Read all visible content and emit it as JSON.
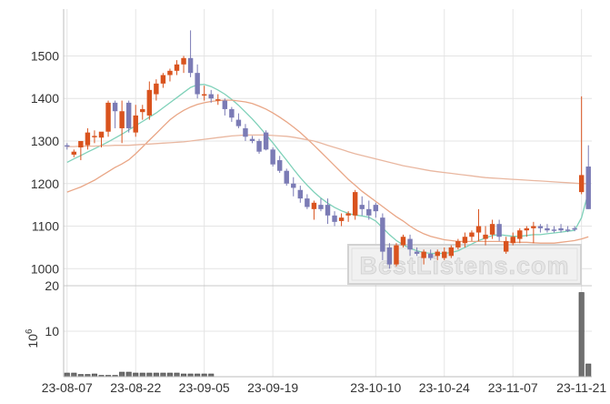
{
  "watermark": "BestListens.com",
  "chart_data": {
    "type": "candlestick",
    "grid": true,
    "price_axis": {
      "ylim": [
        960,
        1610
      ],
      "ticks": [
        "1000",
        "1100",
        "1200",
        "1300",
        "1400",
        "1500"
      ]
    },
    "volume_axis": {
      "ylim": [
        0,
        20
      ],
      "ticks": [
        "10",
        "20"
      ],
      "multiplier_label": "10",
      "multiplier_exponent": "6"
    },
    "x_tick_labels": [
      "23-08-07",
      "23-08-22",
      "23-09-05",
      "23-09-19",
      "23-10-10",
      "23-10-24",
      "23-11-07",
      "23-11-21"
    ],
    "x_tick_index": [
      0,
      10,
      20,
      30,
      45,
      55,
      65,
      75
    ],
    "bar_count": 77,
    "candles": [
      [
        1290,
        1295,
        1280,
        1288
      ],
      [
        1268,
        1280,
        1262,
        1275
      ],
      [
        1285,
        1300,
        1255,
        1300
      ],
      [
        1290,
        1330,
        1280,
        1320
      ],
      [
        1312,
        1325,
        1295,
        1312
      ],
      [
        1308,
        1320,
        1285,
        1322
      ],
      [
        1322,
        1395,
        1310,
        1390
      ],
      [
        1390,
        1395,
        1330,
        1370
      ],
      [
        1330,
        1395,
        1295,
        1370
      ],
      [
        1390,
        1395,
        1320,
        1330
      ],
      [
        1320,
        1385,
        1310,
        1360
      ],
      [
        1368,
        1385,
        1350,
        1375
      ],
      [
        1360,
        1440,
        1350,
        1420
      ],
      [
        1410,
        1445,
        1395,
        1435
      ],
      [
        1435,
        1460,
        1425,
        1455
      ],
      [
        1455,
        1470,
        1440,
        1465
      ],
      [
        1465,
        1490,
        1455,
        1480
      ],
      [
        1480,
        1500,
        1460,
        1495
      ],
      [
        1495,
        1560,
        1450,
        1460
      ],
      [
        1460,
        1480,
        1400,
        1410
      ],
      [
        1410,
        1430,
        1395,
        1410
      ],
      [
        1410,
        1420,
        1390,
        1400
      ],
      [
        1395,
        1410,
        1385,
        1398
      ],
      [
        1395,
        1400,
        1360,
        1375
      ],
      [
        1375,
        1380,
        1345,
        1355
      ],
      [
        1350,
        1365,
        1330,
        1335
      ],
      [
        1330,
        1340,
        1300,
        1310
      ],
      [
        1305,
        1312,
        1295,
        1300
      ],
      [
        1300,
        1305,
        1270,
        1275
      ],
      [
        1320,
        1325,
        1278,
        1280
      ],
      [
        1280,
        1285,
        1240,
        1245
      ],
      [
        1255,
        1265,
        1225,
        1230
      ],
      [
        1230,
        1235,
        1195,
        1200
      ],
      [
        1200,
        1215,
        1170,
        1190
      ],
      [
        1185,
        1195,
        1155,
        1165
      ],
      [
        1165,
        1175,
        1140,
        1145
      ],
      [
        1140,
        1160,
        1115,
        1155
      ],
      [
        1150,
        1165,
        1135,
        1140
      ],
      [
        1150,
        1165,
        1105,
        1125
      ],
      [
        1125,
        1135,
        1100,
        1110
      ],
      [
        1112,
        1130,
        1100,
        1120
      ],
      [
        1125,
        1135,
        1110,
        1130
      ],
      [
        1125,
        1185,
        1115,
        1180
      ],
      [
        1150,
        1170,
        1125,
        1140
      ],
      [
        1140,
        1160,
        1115,
        1125
      ],
      [
        1150,
        1155,
        1120,
        1135
      ],
      [
        1120,
        1130,
        1020,
        1040
      ],
      [
        1050,
        1060,
        1000,
        1010
      ],
      [
        1010,
        1060,
        1005,
        1055
      ],
      [
        1055,
        1080,
        1050,
        1075
      ],
      [
        1070,
        1080,
        1030,
        1045
      ],
      [
        1040,
        1050,
        1030,
        1035
      ],
      [
        1025,
        1045,
        1010,
        1040
      ],
      [
        1035,
        1045,
        1020,
        1025
      ],
      [
        1030,
        1045,
        1020,
        1040
      ],
      [
        1025,
        1050,
        1020,
        1040
      ],
      [
        1030,
        1055,
        1025,
        1050
      ],
      [
        1050,
        1070,
        1045,
        1065
      ],
      [
        1060,
        1085,
        1050,
        1075
      ],
      [
        1075,
        1090,
        1065,
        1085
      ],
      [
        1085,
        1140,
        1065,
        1100
      ],
      [
        1070,
        1100,
        1055,
        1080
      ],
      [
        1080,
        1115,
        1070,
        1105
      ],
      [
        1105,
        1115,
        1065,
        1075
      ],
      [
        1040,
        1075,
        1035,
        1065
      ],
      [
        1060,
        1085,
        1055,
        1075
      ],
      [
        1070,
        1095,
        1060,
        1090
      ],
      [
        1090,
        1100,
        1075,
        1095
      ],
      [
        1095,
        1110,
        1060,
        1100
      ],
      [
        1100,
        1105,
        1085,
        1095
      ],
      [
        1095,
        1105,
        1085,
        1090
      ],
      [
        1092,
        1100,
        1085,
        1090
      ],
      [
        1095,
        1105,
        1085,
        1090
      ],
      [
        1092,
        1100,
        1086,
        1090
      ],
      [
        1095,
        1100,
        1088,
        1094
      ],
      [
        1180,
        1405,
        1175,
        1220
      ],
      [
        1240,
        1290,
        1140,
        1140
      ]
    ],
    "series": [
      {
        "name": "",
        "color": "#7fd1b9",
        "values": [
          1250,
          1258,
          1266,
          1274,
          1282,
          1290,
          1298,
          1307,
          1316,
          1326,
          1336,
          1346,
          1356,
          1366,
          1378,
          1390,
          1402,
          1414,
          1426,
          1432,
          1433,
          1428,
          1420,
          1410,
          1398,
          1384,
          1368,
          1352,
          1334,
          1315,
          1296,
          1275,
          1255,
          1234,
          1214,
          1196,
          1180,
          1166,
          1154,
          1144,
          1136,
          1130,
          1126,
          1124,
          1121,
          1112,
          1096,
          1080,
          1066,
          1056,
          1048,
          1042,
          1038,
          1036,
          1036,
          1036,
          1038,
          1042,
          1050,
          1058,
          1066,
          1072,
          1078,
          1080,
          1078,
          1076,
          1076,
          1078,
          1080,
          1080,
          1082,
          1084,
          1086,
          1088,
          1090,
          1120,
          1180
        ]
      },
      {
        "name": "",
        "color": "#e9a686",
        "values": [
          1180,
          1186,
          1192,
          1200,
          1208,
          1218,
          1228,
          1238,
          1246,
          1256,
          1270,
          1286,
          1302,
          1318,
          1334,
          1350,
          1362,
          1372,
          1380,
          1386,
          1390,
          1393,
          1395,
          1396,
          1396,
          1394,
          1392,
          1388,
          1382,
          1375,
          1366,
          1356,
          1345,
          1333,
          1320,
          1305,
          1290,
          1274,
          1258,
          1242,
          1226,
          1210,
          1196,
          1182,
          1170,
          1158,
          1146,
          1134,
          1122,
          1112,
          1100,
          1090,
          1082,
          1076,
          1072,
          1068,
          1066,
          1064,
          1064,
          1064,
          1064,
          1064,
          1064,
          1064,
          1063,
          1062,
          1062,
          1062,
          1061,
          1060,
          1060,
          1060,
          1062,
          1064,
          1066,
          1070,
          1075
        ]
      },
      {
        "name": "",
        "color": "#e9b7a0",
        "values": [
          1287,
          1287,
          1288,
          1288,
          1288,
          1289,
          1289,
          1290,
          1290,
          1290,
          1291,
          1292,
          1293,
          1294,
          1295,
          1296,
          1297,
          1298,
          1300,
          1302,
          1304,
          1306,
          1308,
          1310,
          1312,
          1313,
          1314,
          1314,
          1314,
          1314,
          1313,
          1312,
          1311,
          1309,
          1306,
          1303,
          1300,
          1295,
          1290,
          1285,
          1280,
          1275,
          1270,
          1266,
          1262,
          1258,
          1254,
          1250,
          1246,
          1242,
          1239,
          1236,
          1233,
          1230,
          1228,
          1226,
          1224,
          1222,
          1220,
          1218,
          1216,
          1214,
          1213,
          1212,
          1211,
          1210,
          1209,
          1208,
          1207,
          1206,
          1205,
          1204,
          1203,
          1202,
          1201,
          1200,
          1200
        ]
      }
    ],
    "volume": [
      0.8,
      0.8,
      0.5,
      0.5,
      0.6,
      0.3,
      0.3,
      0.3,
      1.0,
      1.0,
      0.8,
      0.8,
      0.8,
      0.8,
      0.8,
      0.8,
      0.8,
      0.6,
      0.6,
      0.6,
      0.6,
      0.6,
      0,
      0,
      0,
      0,
      0,
      0,
      0,
      0,
      0,
      0,
      0,
      0,
      0,
      0,
      0,
      0,
      0,
      0,
      0,
      0,
      0,
      0,
      0,
      0,
      0,
      0,
      0,
      0,
      0,
      0,
      0,
      0,
      0,
      0,
      0,
      0,
      0,
      0,
      0,
      0,
      0,
      0,
      0,
      0,
      0,
      0,
      0,
      0,
      0,
      0,
      0,
      0,
      0,
      18.5,
      2.8
    ],
    "up_color": "#d9531e",
    "down_color": "#7b7bb5",
    "volume_color": "#707070"
  }
}
